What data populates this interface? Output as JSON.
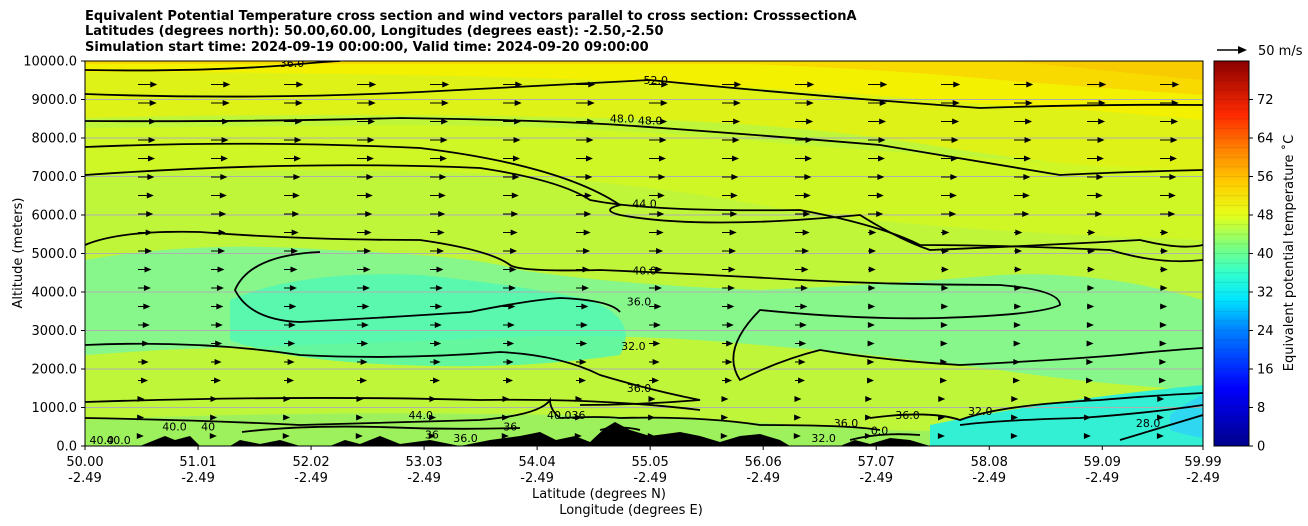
{
  "title_lines": [
    "Equivalent Potential Temperature cross section and wind vectors parallel to cross section: CrosssectionA",
    "Latitudes (degrees north): 50.00,60.00, Longitudes (degrees east): -2.50,-2.50",
    "Simulation start time: 2024-09-19 00:00:00, Valid time: 2024-09-20 09:00:00"
  ],
  "chart_data": {
    "type": "heatmap",
    "x_label_1": "Latitude (degrees N)",
    "x_label_2": "Longitude (degrees E)",
    "y_label": "Altitude (meters)",
    "colorbar_label": "Equivalent potential temperature ˚C",
    "quiver_key_label": "50 m/s",
    "xlim": [
      50.0,
      59.99
    ],
    "ylim": [
      0,
      10000
    ],
    "x_ticks": [
      {
        "lat": "50.00",
        "lon": "-2.49",
        "value": 50.0
      },
      {
        "lat": "51.01",
        "lon": "-2.49",
        "value": 51.01
      },
      {
        "lat": "52.02",
        "lon": "-2.49",
        "value": 52.02
      },
      {
        "lat": "53.03",
        "lon": "-2.49",
        "value": 53.03
      },
      {
        "lat": "54.04",
        "lon": "-2.49",
        "value": 54.04
      },
      {
        "lat": "55.05",
        "lon": "-2.49",
        "value": 55.05
      },
      {
        "lat": "56.06",
        "lon": "-2.49",
        "value": 56.06
      },
      {
        "lat": "57.07",
        "lon": "-2.49",
        "value": 57.07
      },
      {
        "lat": "58.08",
        "lon": "-2.49",
        "value": 58.08
      },
      {
        "lat": "59.09",
        "lon": "-2.49",
        "value": 59.09
      },
      {
        "lat": "59.99",
        "lon": "-2.49",
        "value": 59.99
      }
    ],
    "y_ticks": [
      {
        "label": "0.0",
        "value": 0
      },
      {
        "label": "1000.0",
        "value": 1000
      },
      {
        "label": "2000.0",
        "value": 2000
      },
      {
        "label": "3000.0",
        "value": 3000
      },
      {
        "label": "4000.0",
        "value": 4000
      },
      {
        "label": "5000.0",
        "value": 5000
      },
      {
        "label": "6000.0",
        "value": 6000
      },
      {
        "label": "7000.0",
        "value": 7000
      },
      {
        "label": "8000.0",
        "value": 8000
      },
      {
        "label": "9000.0",
        "value": 9000
      },
      {
        "label": "10000.0",
        "value": 10000
      }
    ],
    "colorbar_range": [
      0,
      80
    ],
    "colorbar_ticks": [
      0,
      8,
      16,
      24,
      32,
      40,
      48,
      56,
      64,
      72
    ],
    "grid": "horizontal",
    "contour_labels": [
      {
        "text": "36.0",
        "x": 51.85,
        "y": 9850
      },
      {
        "text": "52.0",
        "x": 55.1,
        "y": 9400
      },
      {
        "text": "48.0",
        "x": 54.8,
        "y": 8400
      },
      {
        "text": "48.0",
        "x": 55.05,
        "y": 8350
      },
      {
        "text": "44.0",
        "x": 55.0,
        "y": 6200
      },
      {
        "text": "40.0",
        "x": 55.0,
        "y": 4450
      },
      {
        "text": "36.0",
        "x": 54.95,
        "y": 3650
      },
      {
        "text": "32.0",
        "x": 54.9,
        "y": 2500
      },
      {
        "text": "36.0",
        "x": 54.95,
        "y": 1400
      },
      {
        "text": "40.0",
        "x": 50.15,
        "y": 50
      },
      {
        "text": "40.0",
        "x": 50.3,
        "y": 50
      },
      {
        "text": "40.0",
        "x": 50.8,
        "y": 400
      },
      {
        "text": "40",
        "x": 51.1,
        "y": 400
      },
      {
        "text": "44.0",
        "x": 53.0,
        "y": 700
      },
      {
        "text": "36",
        "x": 53.1,
        "y": 200
      },
      {
        "text": "36.0",
        "x": 53.4,
        "y": 100
      },
      {
        "text": "36",
        "x": 53.8,
        "y": 400
      },
      {
        "text": "40.036",
        "x": 54.3,
        "y": 700
      },
      {
        "text": "32.0",
        "x": 56.6,
        "y": 100
      },
      {
        "text": "36.0",
        "x": 56.8,
        "y": 500
      },
      {
        "text": "0.0",
        "x": 57.1,
        "y": 300
      },
      {
        "text": "36.0",
        "x": 57.35,
        "y": 700
      },
      {
        "text": "32.0",
        "x": 58.0,
        "y": 800
      },
      {
        "text": "28.0",
        "x": 59.5,
        "y": 500
      }
    ]
  }
}
